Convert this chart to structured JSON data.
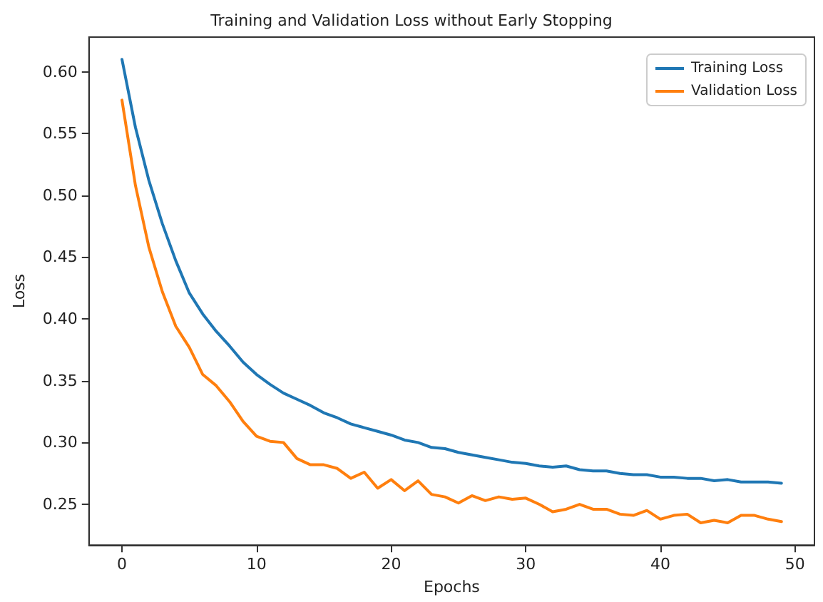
{
  "chart_data": {
    "type": "line",
    "title": "Training and Validation Loss without Early Stopping",
    "xlabel": "Epochs",
    "ylabel": "Loss",
    "x": [
      0,
      1,
      2,
      3,
      4,
      5,
      6,
      7,
      8,
      9,
      10,
      11,
      12,
      13,
      14,
      15,
      16,
      17,
      18,
      19,
      20,
      21,
      22,
      23,
      24,
      25,
      26,
      27,
      28,
      29,
      30,
      31,
      32,
      33,
      34,
      35,
      36,
      37,
      38,
      39,
      40,
      41,
      42,
      43,
      44,
      45,
      46,
      47,
      48,
      49
    ],
    "series": [
      {
        "name": "Training Loss",
        "color": "#1f77b4",
        "values": [
          0.61,
          0.555,
          0.512,
          0.477,
          0.447,
          0.421,
          0.404,
          0.39,
          0.378,
          0.365,
          0.355,
          0.347,
          0.34,
          0.335,
          0.33,
          0.324,
          0.32,
          0.315,
          0.312,
          0.309,
          0.306,
          0.302,
          0.3,
          0.296,
          0.295,
          0.292,
          0.29,
          0.288,
          0.286,
          0.284,
          0.283,
          0.281,
          0.28,
          0.281,
          0.278,
          0.277,
          0.277,
          0.275,
          0.274,
          0.274,
          0.272,
          0.272,
          0.271,
          0.271,
          0.269,
          0.27,
          0.268,
          0.268,
          0.268,
          0.267
        ]
      },
      {
        "name": "Validation Loss",
        "color": "#ff7f0e",
        "values": [
          0.577,
          0.508,
          0.458,
          0.422,
          0.394,
          0.377,
          0.355,
          0.346,
          0.333,
          0.317,
          0.305,
          0.301,
          0.3,
          0.287,
          0.282,
          0.282,
          0.279,
          0.271,
          0.276,
          0.263,
          0.27,
          0.261,
          0.269,
          0.258,
          0.256,
          0.251,
          0.257,
          0.253,
          0.256,
          0.254,
          0.255,
          0.25,
          0.244,
          0.246,
          0.25,
          0.246,
          0.246,
          0.242,
          0.241,
          0.245,
          0.238,
          0.241,
          0.242,
          0.235,
          0.237,
          0.235,
          0.241,
          0.241,
          0.238,
          0.236
        ]
      }
    ],
    "xlim": [
      -2.45,
      51.45
    ],
    "xticks": [
      0,
      10,
      20,
      30,
      40,
      50
    ],
    "ylim": [
      0.217,
      0.628
    ],
    "yticks": [
      {
        "value": 0.25,
        "label": "0.25"
      },
      {
        "value": 0.3,
        "label": "0.30"
      },
      {
        "value": 0.35,
        "label": "0.35"
      },
      {
        "value": 0.4,
        "label": "0.40"
      },
      {
        "value": 0.45,
        "label": "0.45"
      },
      {
        "value": 0.5,
        "label": "0.50"
      },
      {
        "value": 0.55,
        "label": "0.55"
      },
      {
        "value": 0.6,
        "label": "0.60"
      }
    ],
    "grid": false,
    "legend": "top right",
    "marker": "none",
    "line_style": "solid"
  }
}
